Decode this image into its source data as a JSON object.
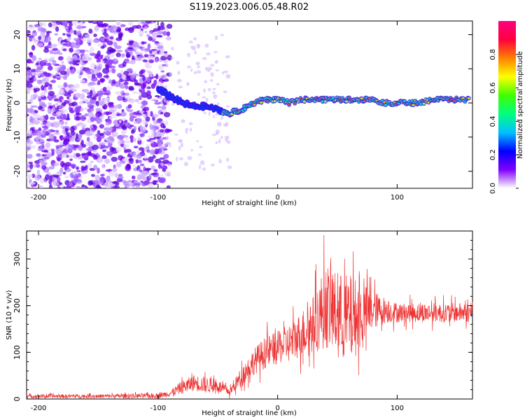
{
  "title": "S119.2023.006.05.48.R02",
  "chart_data": [
    {
      "type": "heatmap",
      "xlabel": "Height of straight line (km)",
      "ylabel": "Frequency (Hz)",
      "xlim": [
        -210,
        163
      ],
      "ylim": [
        -25,
        24
      ],
      "xticks": [
        -200,
        -100,
        0,
        100
      ],
      "yticks": [
        -20,
        -10,
        0,
        10,
        20
      ],
      "grid": false,
      "colorbar": {
        "label": "Normalized spectral amplitude",
        "range": [
          0,
          1
        ],
        "ticks": [
          0.0,
          0.2,
          0.4,
          0.6,
          0.8
        ],
        "colors": [
          "#ffffff",
          "#8000ff",
          "#0000ff",
          "#00c0ff",
          "#00ff80",
          "#40ff00",
          "#ffff00",
          "#ff8000",
          "#ff0040",
          "#ff0080"
        ]
      },
      "ridge": {
        "description_values": "dominant frequency trace vs height",
        "x": [
          -100,
          -90,
          -80,
          -70,
          -60,
          -50,
          -40,
          -30,
          -20,
          -10,
          0,
          10,
          20,
          30,
          40,
          50,
          60,
          70,
          80,
          90,
          100,
          110,
          120,
          130,
          140,
          150,
          160
        ],
        "y": [
          4,
          2,
          0,
          -1,
          -1,
          -2,
          -3,
          -2,
          0,
          1,
          1,
          0,
          1,
          1,
          1,
          1,
          1,
          1,
          1,
          0,
          0,
          0,
          0,
          1,
          1,
          1,
          1
        ]
      }
    },
    {
      "type": "line",
      "xlabel": "Height of straight line (km)",
      "ylabel": "SNR (10 * v/v)",
      "xlim": [
        -210,
        163
      ],
      "ylim": [
        0,
        360
      ],
      "xticks": [
        -200,
        -100,
        0,
        100
      ],
      "yticks": [
        0,
        100,
        200,
        300
      ],
      "grid": false,
      "color": "#ee3333",
      "envelope": {
        "x": [
          -210,
          -150,
          -100,
          -90,
          -80,
          -70,
          -60,
          -50,
          -40,
          -30,
          -20,
          -10,
          0,
          10,
          20,
          30,
          40,
          50,
          60,
          70,
          80,
          90,
          100,
          110,
          120,
          130,
          140,
          150,
          160,
          163
        ],
        "mean": [
          6,
          6,
          7,
          12,
          25,
          35,
          30,
          28,
          15,
          50,
          80,
          100,
          110,
          120,
          140,
          160,
          200,
          180,
          170,
          180,
          190,
          190,
          185,
          185,
          185,
          185,
          185,
          185,
          185,
          185
        ],
        "spread": [
          6,
          6,
          8,
          10,
          20,
          25,
          25,
          20,
          12,
          30,
          40,
          50,
          50,
          60,
          70,
          90,
          130,
          130,
          140,
          100,
          60,
          40,
          30,
          30,
          30,
          30,
          30,
          30,
          30,
          30
        ]
      }
    }
  ]
}
